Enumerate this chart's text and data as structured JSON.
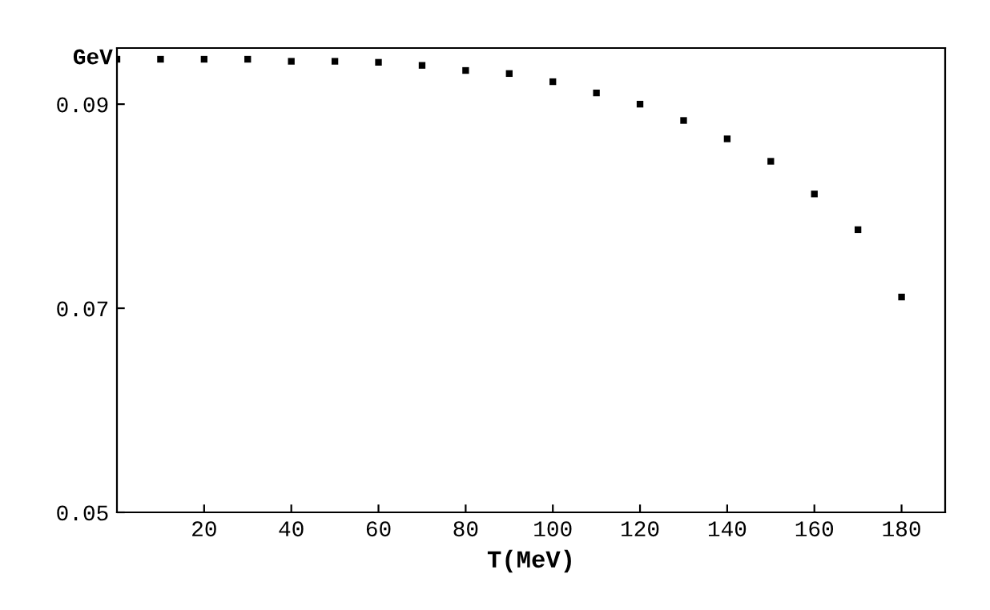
{
  "chart_data": {
    "type": "scatter",
    "xlabel": "T(MeV)",
    "ylabel": "GeV",
    "x": [
      0,
      10,
      20,
      30,
      40,
      50,
      60,
      70,
      80,
      90,
      100,
      110,
      120,
      130,
      140,
      150,
      160,
      170,
      180
    ],
    "series": [
      {
        "color": "#000000",
        "values": [
          0.0944,
          0.0944,
          0.0944,
          0.0944,
          0.0942,
          0.0942,
          0.0941,
          0.0938,
          0.0933,
          0.093,
          0.0922,
          0.0911,
          0.09,
          0.0884,
          0.0866,
          0.0844,
          0.0812,
          0.0777,
          0.0711
        ]
      }
    ],
    "xlim": [
      0,
      190
    ],
    "ylim": [
      0.05,
      0.0955
    ],
    "xticks": [
      20,
      40,
      60,
      80,
      100,
      120,
      140,
      160,
      180
    ],
    "yticks": [
      {
        "value": 0.05,
        "label": "0.05"
      },
      {
        "value": 0.07,
        "label": "0.07"
      },
      {
        "value": 0.09,
        "label": "0.09"
      }
    ],
    "marker": "square",
    "grid": false,
    "legend": false
  }
}
